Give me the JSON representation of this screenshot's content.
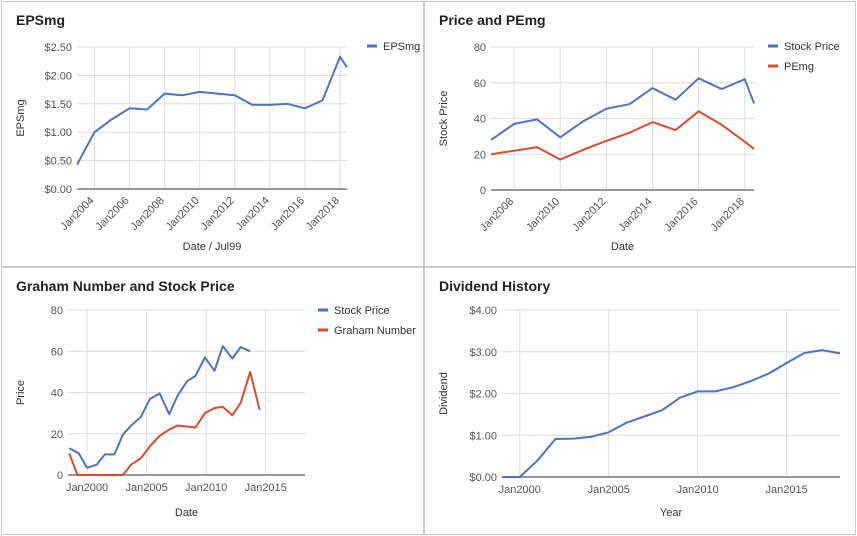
{
  "colors": {
    "blue": "#4a73c9",
    "red": "#dc4a2e",
    "grid": "#dcdcdc",
    "axis": "#333333",
    "text": "#555555"
  },
  "chart_data": [
    {
      "type": "line",
      "title": "EPSmg",
      "xlabel": "Date / Jul99",
      "ylabel": "EPSmg",
      "x_range": [
        2003,
        2018.4
      ],
      "ylim": [
        0,
        2.5
      ],
      "y_ticks": [
        0,
        0.5,
        1,
        1.5,
        2,
        2.5
      ],
      "y_tick_labels": [
        "$0.00",
        "$0.50",
        "$1.00",
        "$1.50",
        "$2.00",
        "$2.50"
      ],
      "x_ticks": [
        2004,
        2006,
        2008,
        2010,
        2012,
        2014,
        2016,
        2018
      ],
      "x_tick_labels": [
        "Jan2004",
        "Jan2006",
        "Jan2008",
        "Jan2010",
        "Jan2012",
        "Jan2014",
        "Jan2016",
        "Jan2018"
      ],
      "grid": true,
      "legend_position": "top-right",
      "series": [
        {
          "name": "EPSmg",
          "color": "#4a73c9",
          "x": [
            2003,
            2004,
            2005,
            2006,
            2007,
            2008,
            2009,
            2010,
            2011,
            2012,
            2013,
            2014,
            2015,
            2016,
            2017,
            2018,
            2018.4
          ],
          "y": [
            0.43,
            1.0,
            1.23,
            1.42,
            1.4,
            1.68,
            1.65,
            1.71,
            1.68,
            1.65,
            1.48,
            1.48,
            1.5,
            1.42,
            1.56,
            2.33,
            2.14
          ]
        }
      ]
    },
    {
      "type": "line",
      "title": "Price and PEmg",
      "xlabel": "Date",
      "ylabel": "Stock Price",
      "x_range": [
        2007,
        2018.4
      ],
      "ylim": [
        0,
        80
      ],
      "y_ticks": [
        0,
        20,
        40,
        60,
        80
      ],
      "y_tick_labels": [
        "0",
        "20",
        "40",
        "60",
        "80"
      ],
      "x_ticks": [
        2008,
        2010,
        2012,
        2014,
        2016,
        2018
      ],
      "x_tick_labels": [
        "Jan2008",
        "Jan2010",
        "Jan2012",
        "Jan2014",
        "Jan2016",
        "Jan2018"
      ],
      "grid": true,
      "legend_position": "top-right",
      "series": [
        {
          "name": "Stock Price",
          "color": "#4a73c9",
          "x": [
            2007,
            2008,
            2009,
            2010,
            2011,
            2012,
            2013,
            2014,
            2015,
            2016,
            2017,
            2018,
            2018.4
          ],
          "y": [
            28,
            37,
            39.5,
            29.5,
            38.5,
            45.5,
            48,
            57,
            50.5,
            62.5,
            56.5,
            62,
            48.5
          ]
        },
        {
          "name": "PEmg",
          "color": "#dc4a2e",
          "x": [
            2007,
            2008,
            2009,
            2010,
            2011,
            2012,
            2013,
            2014,
            2015,
            2016,
            2017,
            2018,
            2018.4
          ],
          "y": [
            20,
            22,
            24,
            17,
            22.5,
            27.5,
            32,
            38,
            33.5,
            44,
            36.5,
            27,
            23
          ]
        }
      ]
    },
    {
      "type": "line",
      "title": "Graham Number and Stock Price",
      "xlabel": "Date",
      "ylabel": "Price",
      "x_range": [
        1998.4,
        2018.3
      ],
      "ylim": [
        0,
        80
      ],
      "y_ticks": [
        0,
        20,
        40,
        60,
        80
      ],
      "y_tick_labels": [
        "0",
        "20",
        "40",
        "60",
        "80"
      ],
      "x_ticks": [
        2000,
        2005,
        2010,
        2015
      ],
      "x_tick_labels": [
        "Jan2000",
        "Jan2005",
        "Jan2010",
        "Jan2015"
      ],
      "grid": true,
      "legend_position": "top-right",
      "series": [
        {
          "name": "Stock Price",
          "color": "#4a73c9",
          "x": [
            1998.5,
            1999.3,
            2000,
            2000.8,
            2001.5,
            2002.3,
            2003,
            2003.7,
            2004.5,
            2005.3,
            2006.1,
            2006.9,
            2007.6,
            2008.4,
            2009.1,
            2009.9,
            2010.7,
            2011.4,
            2012.2,
            2012.9,
            2013.7,
            2014.5,
            2015.2,
            2016,
            2016.7,
            2017.5,
            2018.3
          ],
          "y": [
            13,
            10.5,
            3.5,
            5,
            10,
            10,
            19.5,
            24,
            28,
            37,
            39.5,
            29.5,
            38.5,
            45.5,
            48,
            57,
            50.5,
            62.5,
            56.5,
            62,
            60,
            null,
            null,
            null,
            null,
            null,
            null
          ]
        },
        {
          "name": "Graham Number",
          "color": "#dc4a2e",
          "x": [
            1998.5,
            1999.2,
            2000,
            2001,
            2002,
            2003,
            2003.7,
            2004.5,
            2005.3,
            2006.1,
            2006.9,
            2007.6,
            2008.4,
            2009.1,
            2009.9,
            2010.7,
            2011.4,
            2012.2,
            2012.9,
            2013.7,
            2014.5,
            2015.2,
            2016,
            2016.7,
            2017.5,
            2018.3
          ],
          "y": [
            10.5,
            0,
            0,
            0,
            0,
            0,
            5,
            8,
            14,
            19,
            22,
            24,
            23.5,
            23,
            30,
            32.5,
            33,
            29,
            35,
            50,
            31.5,
            null,
            null,
            null,
            null,
            null
          ]
        }
      ]
    },
    {
      "type": "line",
      "title": "Dividend History",
      "xlabel": "Year",
      "ylabel": "Dividend",
      "x_range": [
        1999,
        2018
      ],
      "ylim": [
        0,
        4
      ],
      "y_ticks": [
        0,
        1,
        2,
        3,
        4
      ],
      "y_tick_labels": [
        "$0.00",
        "$1.00",
        "$2.00",
        "$3.00",
        "$4.00"
      ],
      "x_ticks": [
        2000,
        2005,
        2010,
        2015
      ],
      "x_tick_labels": [
        "Jan2000",
        "Jan2005",
        "Jan2010",
        "Jan2015"
      ],
      "grid": true,
      "legend_position": "none",
      "series": [
        {
          "name": "",
          "color": "#4a73c9",
          "x": [
            1999,
            2000,
            2001,
            2002,
            2003,
            2004,
            2005,
            2006,
            2007,
            2008,
            2009,
            2010,
            2011,
            2012,
            2013,
            2014,
            2015,
            2016,
            2017,
            2018
          ],
          "y": [
            0,
            0,
            0.4,
            0.91,
            0.92,
            0.96,
            1.07,
            1.3,
            1.45,
            1.6,
            1.9,
            2.05,
            2.05,
            2.15,
            2.3,
            2.48,
            2.73,
            2.97,
            3.04,
            2.96
          ]
        }
      ]
    }
  ]
}
